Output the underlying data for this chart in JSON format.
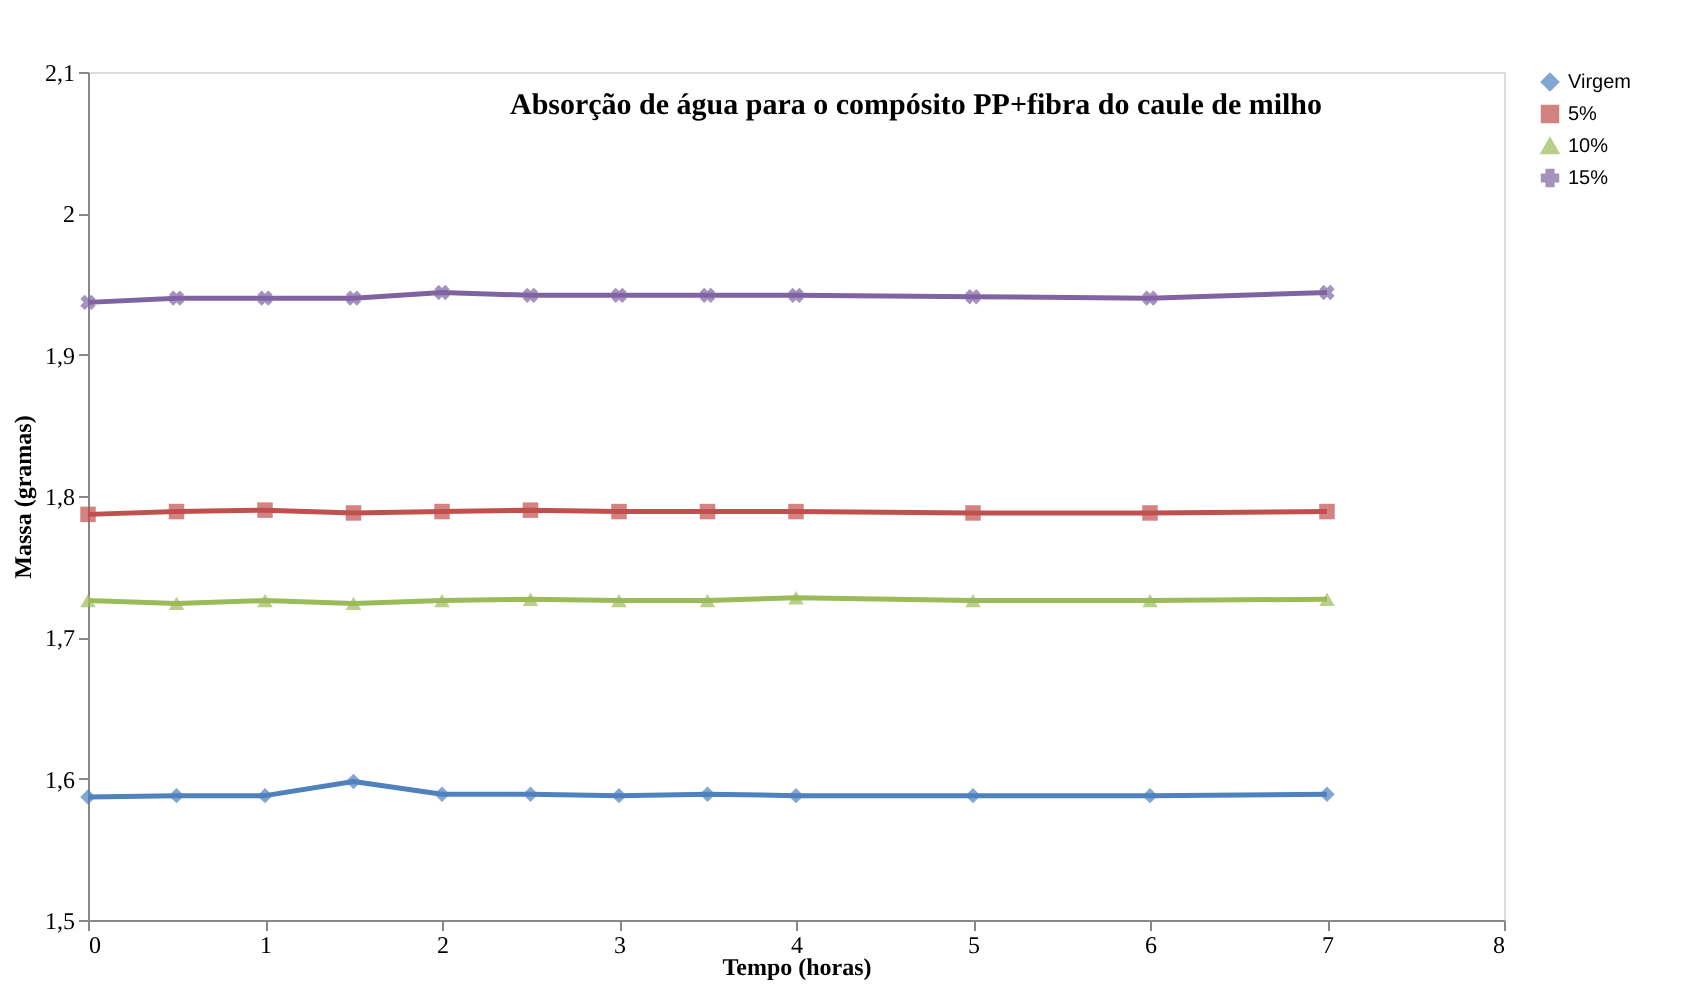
{
  "chart_data": {
    "type": "line",
    "title": "Absorção de água para o compósito PP+fibra do caule de milho",
    "xlabel": "Tempo (horas)",
    "ylabel": "Massa (gramas)",
    "x": [
      0,
      0.5,
      1,
      1.5,
      2,
      2.5,
      3,
      3.5,
      4,
      5,
      6,
      7
    ],
    "series": [
      {
        "name": "Virgem",
        "color": "#4f81bd",
        "marker": "diamond",
        "values": [
          1.587,
          1.588,
          1.588,
          1.598,
          1.589,
          1.589,
          1.588,
          1.589,
          1.588,
          1.588,
          1.588,
          1.589
        ]
      },
      {
        "name": "5%",
        "color": "#c0504d",
        "marker": "square",
        "values": [
          1.787,
          1.789,
          1.79,
          1.788,
          1.789,
          1.79,
          1.789,
          1.789,
          1.789,
          1.788,
          1.788,
          1.789
        ]
      },
      {
        "name": "10%",
        "color": "#9bbb59",
        "marker": "triangle",
        "values": [
          1.726,
          1.724,
          1.726,
          1.724,
          1.726,
          1.727,
          1.726,
          1.726,
          1.728,
          1.726,
          1.726,
          1.727
        ]
      },
      {
        "name": "15%",
        "color": "#8064a2",
        "marker": "cross",
        "values": [
          1.937,
          1.94,
          1.94,
          1.94,
          1.944,
          1.942,
          1.942,
          1.942,
          1.942,
          1.941,
          1.94,
          1.944
        ]
      }
    ],
    "xlim": [
      0,
      8
    ],
    "xticks": [
      0,
      1,
      2,
      3,
      4,
      5,
      6,
      7,
      8
    ],
    "ylim": [
      1.5,
      2.1
    ],
    "yticks": [
      {
        "value": 1.5,
        "label": "1,5"
      },
      {
        "value": 1.6,
        "label": "1,6"
      },
      {
        "value": 1.7,
        "label": "1,7"
      },
      {
        "value": 1.8,
        "label": "1,8"
      },
      {
        "value": 1.9,
        "label": "1,9"
      },
      {
        "value": 2,
        "label": "2"
      },
      {
        "value": 2.1,
        "label": "2,1"
      }
    ],
    "grid": false,
    "legend": "right",
    "line_style": "solid"
  }
}
